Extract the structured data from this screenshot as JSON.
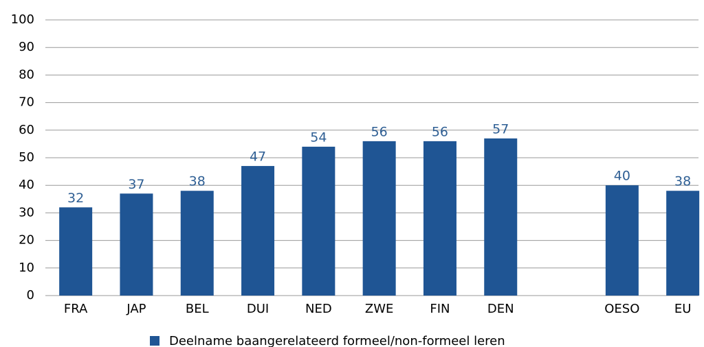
{
  "chart_data": {
    "type": "bar",
    "categories": [
      "FRA",
      "JAP",
      "BEL",
      "DUI",
      "NED",
      "ZWE",
      "FIN",
      "DEN",
      null,
      "OESO",
      "EU"
    ],
    "series": [
      {
        "name": "Deelname baangerelateerd formeel/non-formeel leren",
        "color": "#1f5594",
        "values": [
          32,
          37,
          38,
          47,
          54,
          56,
          56,
          57,
          null,
          40,
          38
        ]
      }
    ],
    "ylim": [
      0,
      100
    ],
    "yticks": [
      0,
      10,
      20,
      30,
      40,
      50,
      60,
      70,
      80,
      90,
      100
    ],
    "grid": true,
    "legend": "bottom"
  }
}
